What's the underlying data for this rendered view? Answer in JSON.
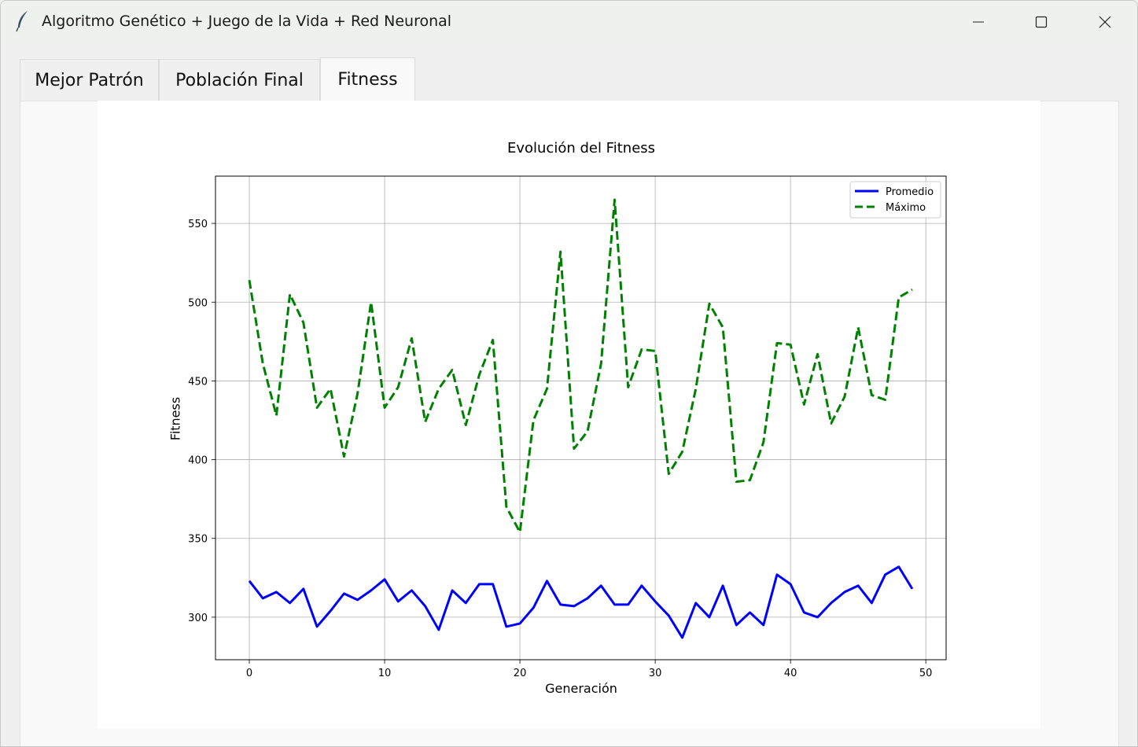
{
  "window": {
    "title": "Algoritmo Genético + Juego de la Vida + Red Neuronal"
  },
  "tabs": [
    {
      "label": "Mejor Patrón",
      "active": false
    },
    {
      "label": "Población Final",
      "active": false
    },
    {
      "label": "Fitness",
      "active": true
    }
  ],
  "colors": {
    "promedio": "#0000ff",
    "maximo": "#008000",
    "grid": "#b0b0b0"
  },
  "chart_data": {
    "type": "line",
    "title": "Evolución del Fitness",
    "xlabel": "Generación",
    "ylabel": "Fitness",
    "xlim": [
      -2.5,
      51.5
    ],
    "ylim": [
      273,
      580
    ],
    "xticks": [
      0,
      10,
      20,
      30,
      40,
      50
    ],
    "yticks": [
      300,
      350,
      400,
      450,
      500,
      550
    ],
    "grid": true,
    "legend_position": "top-right",
    "x": [
      0,
      1,
      2,
      3,
      4,
      5,
      6,
      7,
      8,
      9,
      10,
      11,
      12,
      13,
      14,
      15,
      16,
      17,
      18,
      19,
      20,
      21,
      22,
      23,
      24,
      25,
      26,
      27,
      28,
      29,
      30,
      31,
      32,
      33,
      34,
      35,
      36,
      37,
      38,
      39,
      40,
      41,
      42,
      43,
      44,
      45,
      46,
      47,
      48,
      49
    ],
    "series": [
      {
        "name": "Promedio",
        "style": "solid",
        "color": "#0000ff",
        "values": [
          323,
          312,
          316,
          309,
          318,
          294,
          304,
          315,
          311,
          317,
          324,
          310,
          317,
          307,
          292,
          317,
          309,
          321,
          321,
          294,
          296,
          306,
          323,
          308,
          307,
          312,
          320,
          308,
          308,
          320,
          310,
          301,
          287,
          309,
          300,
          320,
          295,
          303,
          295,
          327,
          321,
          303,
          300,
          309,
          316,
          320,
          309,
          327,
          332,
          318
        ]
      },
      {
        "name": "Máximo",
        "style": "dashed",
        "color": "#008000",
        "values": [
          514,
          461,
          428,
          505,
          487,
          433,
          445,
          402,
          442,
          500,
          433,
          446,
          477,
          424,
          445,
          457,
          422,
          454,
          476,
          370,
          354,
          425,
          445,
          532,
          407,
          418,
          461,
          565,
          446,
          470,
          469,
          391,
          405,
          445,
          499,
          484,
          386,
          387,
          411,
          474,
          473,
          435,
          467,
          423,
          440,
          484,
          441,
          438,
          503,
          508
        ]
      }
    ]
  }
}
